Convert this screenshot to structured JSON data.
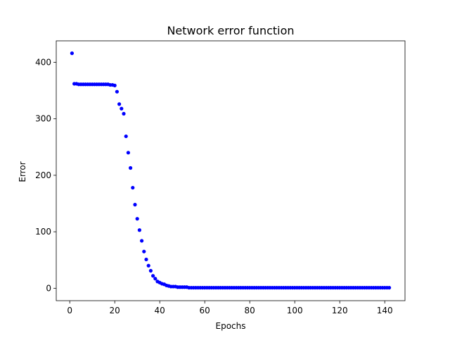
{
  "chart_data": {
    "type": "scatter",
    "title": "Network error function",
    "xlabel": "Epochs",
    "ylabel": "Error",
    "xlim": [
      -6,
      149
    ],
    "ylim": [
      -22,
      438
    ],
    "xticks": [
      0,
      20,
      40,
      60,
      80,
      100,
      120,
      140
    ],
    "yticks": [
      0,
      100,
      200,
      300,
      400
    ],
    "grid": false,
    "marker_color": "#0000ff",
    "series": [
      {
        "x": [
          1,
          2,
          3,
          4,
          5,
          6,
          7,
          8,
          9,
          10,
          11,
          12,
          13,
          14,
          15,
          16,
          17,
          18,
          19,
          20,
          21,
          22,
          23,
          24,
          25,
          26,
          27,
          28,
          29,
          30,
          31,
          32,
          33,
          34,
          35,
          36,
          37,
          38,
          39,
          40,
          41,
          42,
          43,
          44,
          45,
          46,
          47,
          48,
          49,
          50,
          51,
          52,
          53,
          54,
          55,
          56,
          57,
          58,
          59,
          60,
          61,
          62,
          63,
          64,
          65,
          66,
          67,
          68,
          69,
          70,
          71,
          72,
          73,
          74,
          75,
          76,
          77,
          78,
          79,
          80,
          81,
          82,
          83,
          84,
          85,
          86,
          87,
          88,
          89,
          90,
          91,
          92,
          93,
          94,
          95,
          96,
          97,
          98,
          99,
          100,
          101,
          102,
          103,
          104,
          105,
          106,
          107,
          108,
          109,
          110,
          111,
          112,
          113,
          114,
          115,
          116,
          117,
          118,
          119,
          120,
          121,
          122,
          123,
          124,
          125,
          126,
          127,
          128,
          129,
          130,
          131,
          132,
          133,
          134,
          135,
          136,
          137,
          138,
          139,
          140,
          141,
          142
        ],
        "y": [
          416,
          362,
          362,
          361,
          361,
          361,
          361,
          361,
          361,
          361,
          361,
          361,
          361,
          361,
          361,
          361,
          361,
          360,
          360,
          359,
          348,
          326,
          318,
          309,
          269,
          240,
          213,
          178,
          148,
          123,
          103,
          84,
          65,
          51,
          40,
          31,
          22,
          17,
          12,
          10,
          8,
          7,
          5,
          4,
          3,
          3,
          3,
          2,
          2,
          2,
          2,
          2,
          1,
          1,
          1,
          1,
          1,
          1,
          1,
          1,
          1,
          1,
          1,
          1,
          1,
          1,
          1,
          1,
          1,
          1,
          1,
          1,
          1,
          1,
          1,
          1,
          1,
          1,
          1,
          1,
          1,
          1,
          1,
          1,
          1,
          1,
          1,
          1,
          1,
          1,
          1,
          1,
          1,
          1,
          1,
          1,
          1,
          1,
          1,
          1,
          1,
          1,
          1,
          1,
          1,
          1,
          1,
          1,
          1,
          1,
          1,
          1,
          1,
          1,
          1,
          1,
          1,
          1,
          1,
          1,
          1,
          1,
          1,
          1,
          1,
          1,
          1,
          1,
          1,
          1,
          1,
          1,
          1,
          1,
          1,
          1,
          1,
          1,
          1,
          1,
          1,
          1
        ]
      }
    ]
  }
}
